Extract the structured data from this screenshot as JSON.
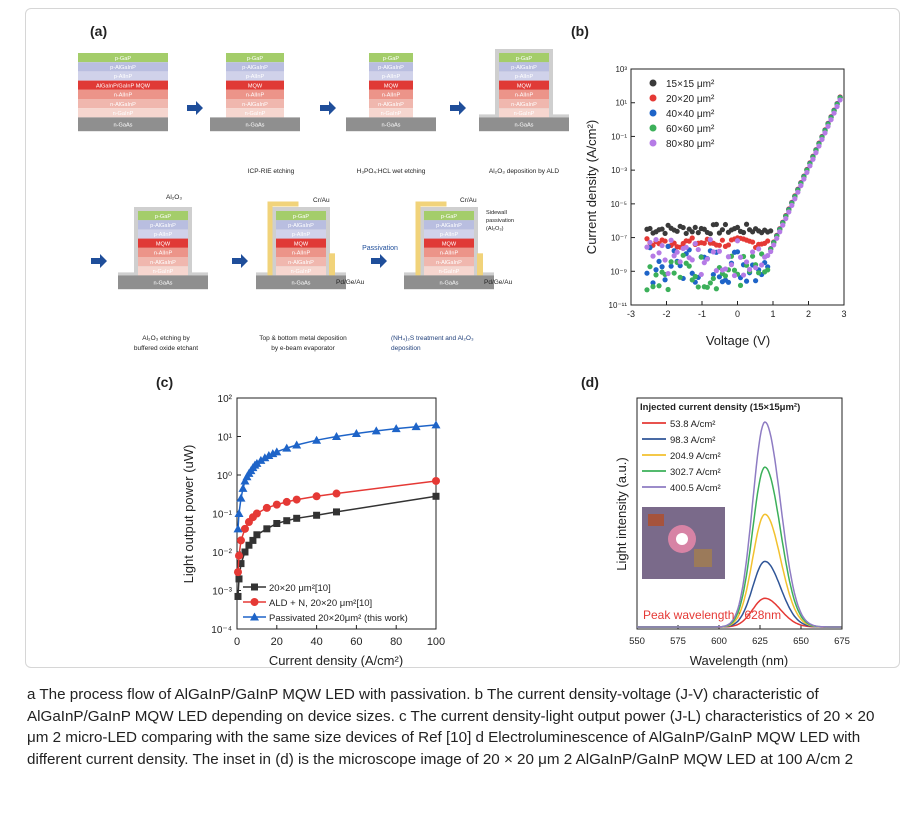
{
  "panel_labels": {
    "a": "(a)",
    "b": "(b)",
    "c": "(c)",
    "d": "(d)"
  },
  "process_flow": {
    "layers": [
      "p-GaP",
      "p-AlGaInP",
      "p-AlInP",
      "AlGaInP/GaInP MQW",
      "n-AlInP",
      "n-AlGaInP",
      "n-GaInP",
      "n-GaAs"
    ],
    "mqw_short": "MQW",
    "steps": [
      "ICP-RIE etching",
      "H₃PO₄:HCL wet etching",
      "Al₂O₃ deposition by ALD"
    ],
    "steps_row2": [
      "Al₂O₃ etching by",
      "buffered oxide etchant",
      "Top & bottom metal deposition",
      "by e-beam evaporator",
      "(NH₄)₂S treatment and Al₂O₃",
      "deposition"
    ],
    "labels": {
      "al2o3": "Al₂O₃",
      "crau": "Cr/Au",
      "pdgeau": "Pd/Ge/Au",
      "passivation": "Passivation",
      "sidewall": [
        "Sidewall",
        "passivation",
        "(Al₂O₃)"
      ]
    },
    "colors": {
      "p-GaP": "#a4cd6a",
      "p-AlGaInP": "#b9bee0",
      "p-AlInP": "#d0d2ea",
      "MQW": "#e03a36",
      "n-AlInP": "#ec9489",
      "n-AlGaInP": "#f0b7ae",
      "n-GaInP": "#f6d6cf",
      "n-GaAs": "#8f8f8f",
      "al2o3": "#cfcfcf",
      "metal": "#f1d37a",
      "arrow": "#1f4e9a"
    }
  },
  "chart_data": [
    {
      "panel": "b",
      "type": "scatter",
      "xlabel": "Voltage (V)",
      "ylabel": "Current density (A/cm²)",
      "xlim": [
        -3,
        3
      ],
      "ylim_log10": [
        -11,
        3
      ],
      "xticks": [
        "-3",
        "-2",
        "-1",
        "0",
        "1",
        "2",
        "3"
      ],
      "yticks": [
        "10³",
        "10¹",
        "10⁻¹",
        "10⁻³",
        "10⁻⁵",
        "10⁻⁷",
        "10⁻⁹",
        "10⁻¹¹"
      ],
      "yscale": "log",
      "legend_position": "top-left",
      "series": [
        {
          "name": "15×15 μm²",
          "color": "#3a3a3a",
          "noise_floor_log10": -6.5,
          "slope": 1.55,
          "knee_v": 0.95,
          "top_log10": 2.1
        },
        {
          "name": "20×20 μm²",
          "color": "#e53935",
          "noise_floor_log10": -7.3,
          "slope": 1.55,
          "knee_v": 0.92,
          "top_log10": 2.3
        },
        {
          "name": "40×40 μm²",
          "color": "#1e64c8",
          "noise_floor_log10": -8.6,
          "slope": 1.6,
          "knee_v": 0.9,
          "top_log10": 2.0
        },
        {
          "name": "60×60 μm²",
          "color": "#3cb05a",
          "noise_floor_log10": -9.0,
          "slope": 1.6,
          "knee_v": 0.88,
          "top_log10": 1.8
        },
        {
          "name": "80×80 μm²",
          "color": "#b57be6",
          "noise_floor_log10": -8.2,
          "slope": 1.6,
          "knee_v": 0.88,
          "top_log10": 1.6
        }
      ]
    },
    {
      "panel": "c",
      "type": "line",
      "xlabel": "Current density (A/cm²)",
      "ylabel": "Light output power (uW)",
      "xlim": [
        0,
        100
      ],
      "ylim_log10": [
        -4,
        2
      ],
      "yscale": "log",
      "xticks": [
        "0",
        "20",
        "40",
        "60",
        "80",
        "100"
      ],
      "yticks": [
        "10²",
        "10¹",
        "10⁰",
        "10⁻¹",
        "10⁻²",
        "10⁻³",
        "10⁻⁴"
      ],
      "legend_position": "bottom-left",
      "series": [
        {
          "name": "20×20 μm²[10]",
          "color": "#333333",
          "marker": "square",
          "x": [
            0.5,
            1,
            2,
            4,
            6,
            8,
            10,
            15,
            20,
            25,
            30,
            40,
            50,
            100
          ],
          "y": [
            0.0007,
            0.002,
            0.005,
            0.01,
            0.015,
            0.02,
            0.028,
            0.04,
            0.055,
            0.065,
            0.075,
            0.09,
            0.11,
            0.28
          ]
        },
        {
          "name": "ALD + N, 20×20 μm²[10]",
          "color": "#e53935",
          "marker": "circle",
          "x": [
            0.5,
            1,
            2,
            4,
            6,
            8,
            10,
            15,
            20,
            25,
            30,
            40,
            50,
            100
          ],
          "y": [
            0.003,
            0.008,
            0.02,
            0.04,
            0.06,
            0.08,
            0.1,
            0.14,
            0.17,
            0.2,
            0.23,
            0.28,
            0.33,
            0.7
          ]
        },
        {
          "name": "Passivated 20×20μm² (this work)",
          "color": "#1e64c8",
          "marker": "triangle",
          "x": [
            0.5,
            1,
            2,
            3,
            4,
            5,
            6,
            7,
            8,
            9,
            10,
            12,
            14,
            16,
            18,
            20,
            25,
            30,
            40,
            50,
            60,
            70,
            80,
            90,
            100
          ],
          "y": [
            0.04,
            0.1,
            0.25,
            0.45,
            0.7,
            0.9,
            1.1,
            1.3,
            1.55,
            1.8,
            2.0,
            2.4,
            2.8,
            3.2,
            3.6,
            4.0,
            5.0,
            6.0,
            8.0,
            10,
            12,
            14,
            16,
            18,
            20
          ]
        }
      ]
    },
    {
      "panel": "d",
      "type": "line",
      "xlabel": "Wavelength (nm)",
      "ylabel": "Light intensity (a.u.)",
      "xlim": [
        550,
        675
      ],
      "xticks": [
        "550",
        "575",
        "600",
        "625",
        "650",
        "675"
      ],
      "legend_title": "Injected current density (15×15μm²)",
      "legend_position": "top-left",
      "annotation": "Peak wavelength : 628nm",
      "peak_nm": 628,
      "series": [
        {
          "name": "53.8 A/cm²",
          "color": "#e53935",
          "peak": 0.14
        },
        {
          "name": "98.3 A/cm²",
          "color": "#2f5597",
          "peak": 0.32
        },
        {
          "name": "204.9 A/cm²",
          "color": "#f2c12e",
          "peak": 0.55
        },
        {
          "name": "302.7 A/cm²",
          "color": "#3cb05a",
          "peak": 0.78
        },
        {
          "name": "400.5 A/cm²",
          "color": "#8e7cc3",
          "peak": 1.0
        }
      ]
    }
  ],
  "caption": "a The process flow of AlGaInP/GaInP MQW LED with passivation. b The current density-voltage (J-V) characteristic of AlGaInP/GaInP MQW LED depending on device sizes. c The current density-light output power (J-L) characteristics of 20 × 20 μm 2 micro-LED comparing with the same size devices of Ref [10] d Electroluminescence of AlGaInP/GaInP MQW LED with different current density. The inset in (d) is the microscope image of 20 × 20 μm 2 AlGaInP/GaInP MQW LED at 100 A/cm 2"
}
